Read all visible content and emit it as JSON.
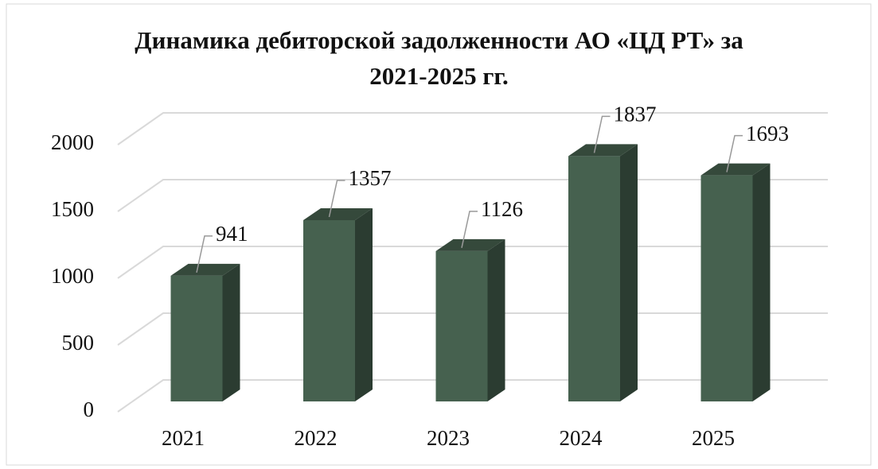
{
  "chart_data": {
    "type": "bar3d",
    "title": "Динамика дебиторской задолженности АО «ЦД РТ» за 2021-2025 гг.",
    "categories": [
      "2021",
      "2022",
      "2023",
      "2024",
      "2025"
    ],
    "values": [
      941,
      1357,
      1126,
      1837,
      1693
    ],
    "color": "#46614f",
    "ylim": [
      0,
      2000
    ],
    "yticks": [
      0,
      500,
      1000,
      1500,
      2000
    ],
    "grid": true
  }
}
